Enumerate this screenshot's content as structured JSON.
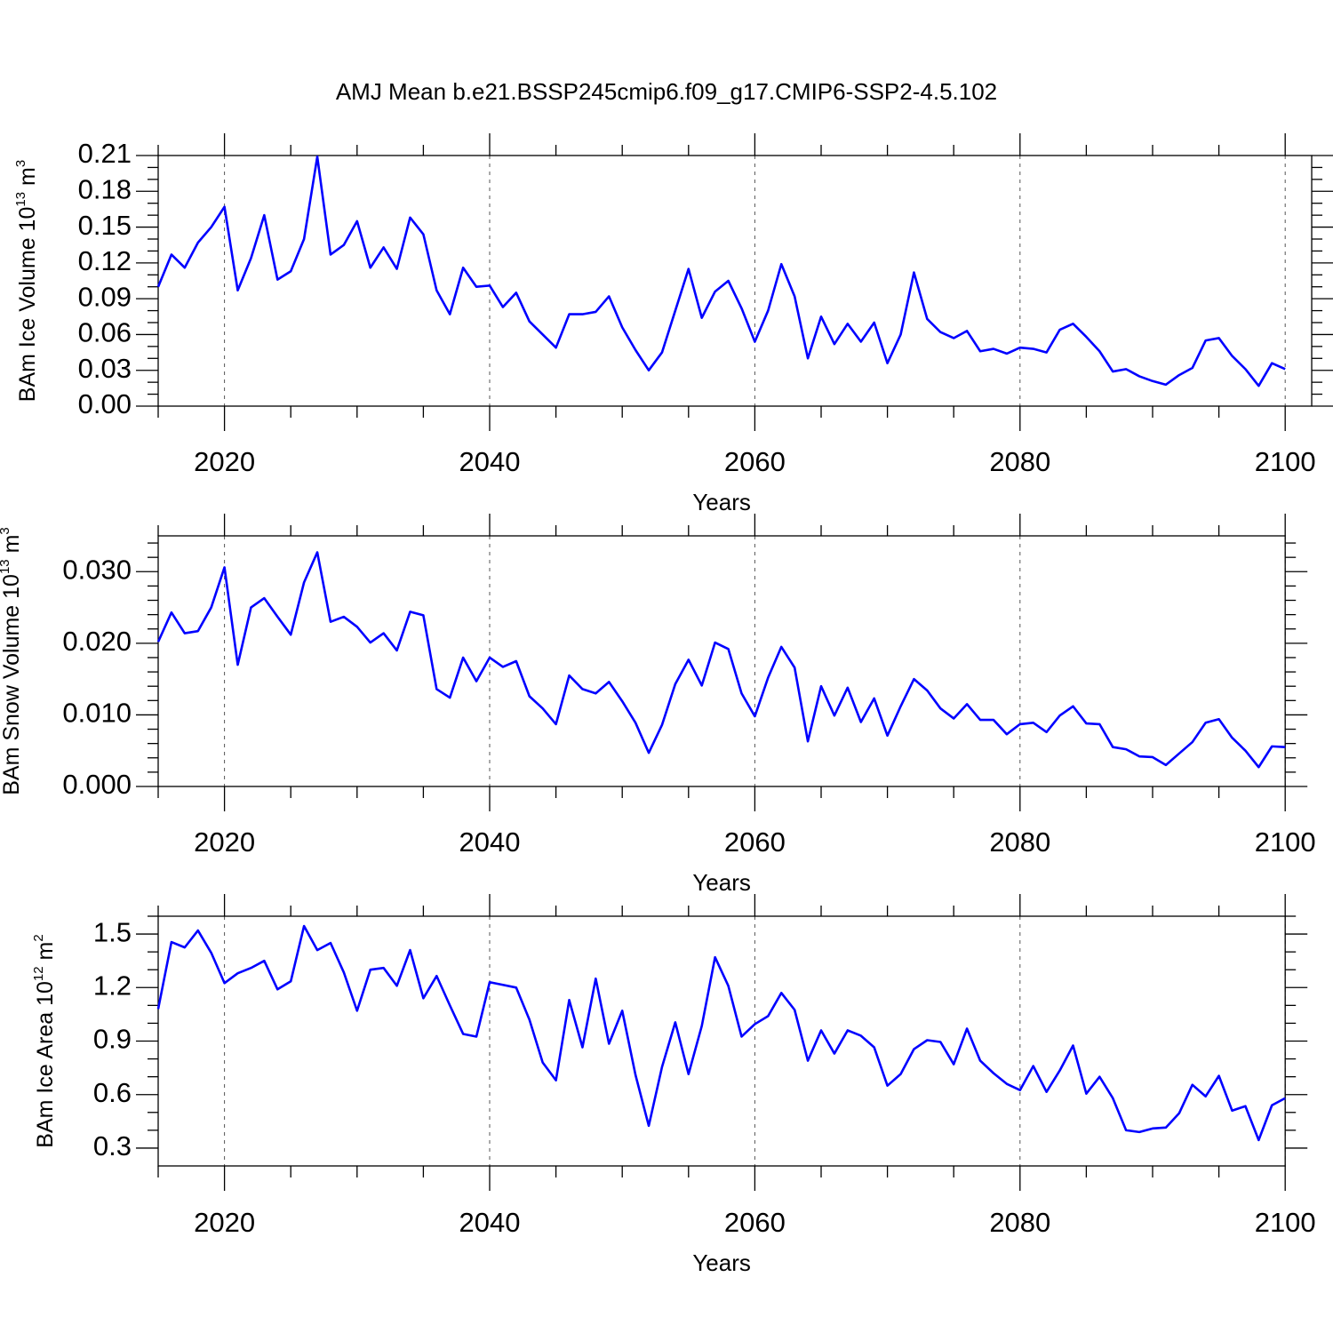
{
  "chart_data": [
    {
      "type": "line",
      "title": "AMJ Mean b.e21.BSSP245cmip6.f09_g17.CMIP6-SSP2-4.5.102",
      "ylabel": {
        "text": "BAm Ice Volume 10",
        "exp": "13",
        "unit": " m",
        "unit_exp": "3"
      },
      "xlabel": "Years",
      "color": "#0000ff",
      "grid": true,
      "xlim": [
        2015,
        2102
      ],
      "xticks": [
        2020,
        2040,
        2060,
        2080,
        2100
      ],
      "xminorticks": [
        2015,
        2025,
        2030,
        2035,
        2045,
        2050,
        2055,
        2065,
        2070,
        2075,
        2085,
        2090,
        2095
      ],
      "ylim": [
        0,
        0.21
      ],
      "yticks": [
        {
          "value": 0,
          "label": "0.00"
        },
        0.03,
        0.06,
        0.09,
        0.12,
        0.15,
        0.18,
        0.21
      ],
      "yminorticks": [
        0.01,
        0.02,
        0.04,
        0.05,
        0.07,
        0.08,
        0.1,
        0.11,
        0.13,
        0.14,
        0.16,
        0.17,
        0.19,
        0.2
      ],
      "x": [
        2015,
        2016,
        2017,
        2018,
        2019,
        2020,
        2021,
        2022,
        2023,
        2024,
        2025,
        2026,
        2027,
        2028,
        2029,
        2030,
        2031,
        2032,
        2033,
        2034,
        2035,
        2036,
        2037,
        2038,
        2039,
        2040,
        2041,
        2042,
        2043,
        2044,
        2045,
        2046,
        2047,
        2048,
        2049,
        2050,
        2051,
        2052,
        2053,
        2054,
        2055,
        2056,
        2057,
        2058,
        2059,
        2060,
        2061,
        2062,
        2063,
        2064,
        2065,
        2066,
        2067,
        2068,
        2069,
        2070,
        2071,
        2072,
        2073,
        2074,
        2075,
        2076,
        2077,
        2078,
        2079,
        2080,
        2081,
        2082,
        2083,
        2084,
        2085,
        2086,
        2087,
        2088,
        2089,
        2090,
        2091,
        2092,
        2093,
        2094,
        2095,
        2096,
        2097,
        2098,
        2099,
        2100
      ],
      "values": [
        0.1,
        0.127,
        0.116,
        0.137,
        0.15,
        0.167,
        0.097,
        0.124,
        0.16,
        0.106,
        0.113,
        0.14,
        0.209,
        0.127,
        0.135,
        0.155,
        0.116,
        0.133,
        0.115,
        0.158,
        0.144,
        0.097,
        0.077,
        0.116,
        0.1,
        0.101,
        0.083,
        0.095,
        0.071,
        0.06,
        0.049,
        0.077,
        0.077,
        0.079,
        0.092,
        0.066,
        0.047,
        0.03,
        0.045,
        0.08,
        0.115,
        0.074,
        0.096,
        0.105,
        0.082,
        0.054,
        0.08,
        0.119,
        0.092,
        0.04,
        0.075,
        0.052,
        0.069,
        0.054,
        0.07,
        0.036,
        0.06,
        0.112,
        0.073,
        0.062,
        0.057,
        0.063,
        0.046,
        0.048,
        0.044,
        0.049,
        0.048,
        0.045,
        0.064,
        0.069,
        0.058,
        0.046,
        0.029,
        0.031,
        0.025,
        0.021,
        0.018,
        0.026,
        0.032,
        0.055,
        0.057,
        0.042,
        0.031,
        0.017,
        0.036,
        0.031
      ]
    },
    {
      "type": "line",
      "ylabel": {
        "text": "BAm Snow Volume 10",
        "exp": "13",
        "unit": " m",
        "unit_exp": "3"
      },
      "xlabel": "Years",
      "color": "#0000ff",
      "grid": true,
      "xlim": [
        2015,
        2100
      ],
      "xticks": [
        2020,
        2040,
        2060,
        2080,
        2100
      ],
      "xminorticks": [
        2015,
        2025,
        2030,
        2035,
        2045,
        2050,
        2055,
        2065,
        2070,
        2075,
        2085,
        2090,
        2095
      ],
      "ylim": [
        0,
        0.035
      ],
      "yticks": [
        {
          "value": 0,
          "label": "0.000"
        },
        {
          "value": 0.01,
          "label": "0.010"
        },
        {
          "value": 0.02,
          "label": "0.020"
        },
        {
          "value": 0.03,
          "label": "0.030"
        }
      ],
      "yminorticks": [
        0.002,
        0.004,
        0.006,
        0.008,
        0.012,
        0.014,
        0.016,
        0.018,
        0.022,
        0.024,
        0.026,
        0.028,
        0.032,
        0.034
      ],
      "x": [
        2015,
        2016,
        2017,
        2018,
        2019,
        2020,
        2021,
        2022,
        2023,
        2024,
        2025,
        2026,
        2027,
        2028,
        2029,
        2030,
        2031,
        2032,
        2033,
        2034,
        2035,
        2036,
        2037,
        2038,
        2039,
        2040,
        2041,
        2042,
        2043,
        2044,
        2045,
        2046,
        2047,
        2048,
        2049,
        2050,
        2051,
        2052,
        2053,
        2054,
        2055,
        2056,
        2057,
        2058,
        2059,
        2060,
        2061,
        2062,
        2063,
        2064,
        2065,
        2066,
        2067,
        2068,
        2069,
        2070,
        2071,
        2072,
        2073,
        2074,
        2075,
        2076,
        2077,
        2078,
        2079,
        2080,
        2081,
        2082,
        2083,
        2084,
        2085,
        2086,
        2087,
        2088,
        2089,
        2090,
        2091,
        2092,
        2093,
        2094,
        2095,
        2096,
        2097,
        2098,
        2099,
        2100
      ],
      "values": [
        0.0202,
        0.0243,
        0.0214,
        0.0217,
        0.025,
        0.0306,
        0.017,
        0.025,
        0.0263,
        0.0237,
        0.0212,
        0.0285,
        0.0327,
        0.023,
        0.0237,
        0.0223,
        0.0201,
        0.0214,
        0.019,
        0.0244,
        0.0239,
        0.0136,
        0.0124,
        0.018,
        0.0147,
        0.018,
        0.0167,
        0.0175,
        0.0126,
        0.0109,
        0.0087,
        0.0155,
        0.0136,
        0.013,
        0.0146,
        0.0119,
        0.0089,
        0.0047,
        0.0086,
        0.0143,
        0.0177,
        0.0141,
        0.0201,
        0.0192,
        0.013,
        0.0098,
        0.0152,
        0.0195,
        0.0166,
        0.0063,
        0.014,
        0.0099,
        0.0138,
        0.009,
        0.0123,
        0.0071,
        0.0112,
        0.015,
        0.0134,
        0.0109,
        0.0095,
        0.0115,
        0.0093,
        0.0093,
        0.0073,
        0.0087,
        0.0089,
        0.0076,
        0.0099,
        0.0112,
        0.0088,
        0.0087,
        0.0055,
        0.0052,
        0.0042,
        0.0041,
        0.003,
        0.0046,
        0.0062,
        0.0089,
        0.0094,
        0.0068,
        0.005,
        0.0027,
        0.0056,
        0.0055
      ]
    },
    {
      "type": "line",
      "ylabel": {
        "text": "BAm Ice Area 10",
        "exp": "12",
        "unit": " m",
        "unit_exp": "2"
      },
      "xlabel": "Years",
      "color": "#0000ff",
      "grid": true,
      "xlim": [
        2015,
        2100
      ],
      "xticks": [
        2020,
        2040,
        2060,
        2080,
        2100
      ],
      "xminorticks": [
        2015,
        2025,
        2030,
        2035,
        2045,
        2050,
        2055,
        2065,
        2070,
        2075,
        2085,
        2090,
        2095
      ],
      "ylim": [
        0.2,
        1.6
      ],
      "yticks": [
        0.3,
        0.6,
        0.9,
        1.2,
        1.5
      ],
      "yminorticks": [
        0.4,
        0.5,
        0.7,
        0.8,
        1.0,
        1.1,
        1.3,
        1.4,
        1.6
      ],
      "x": [
        2015,
        2016,
        2017,
        2018,
        2019,
        2020,
        2021,
        2022,
        2023,
        2024,
        2025,
        2026,
        2027,
        2028,
        2029,
        2030,
        2031,
        2032,
        2033,
        2034,
        2035,
        2036,
        2037,
        2038,
        2039,
        2040,
        2041,
        2042,
        2043,
        2044,
        2045,
        2046,
        2047,
        2048,
        2049,
        2050,
        2051,
        2052,
        2053,
        2054,
        2055,
        2056,
        2057,
        2058,
        2059,
        2060,
        2061,
        2062,
        2063,
        2064,
        2065,
        2066,
        2067,
        2068,
        2069,
        2070,
        2071,
        2072,
        2073,
        2074,
        2075,
        2076,
        2077,
        2078,
        2079,
        2080,
        2081,
        2082,
        2083,
        2084,
        2085,
        2086,
        2087,
        2088,
        2089,
        2090,
        2091,
        2092,
        2093,
        2094,
        2095,
        2096,
        2097,
        2098,
        2099,
        2100
      ],
      "values": [
        1.08,
        1.455,
        1.425,
        1.52,
        1.395,
        1.225,
        1.28,
        1.31,
        1.35,
        1.19,
        1.235,
        1.545,
        1.41,
        1.45,
        1.285,
        1.07,
        1.3,
        1.31,
        1.21,
        1.41,
        1.14,
        1.265,
        1.1,
        0.94,
        0.925,
        1.23,
        1.215,
        1.2,
        1.02,
        0.78,
        0.68,
        1.13,
        0.865,
        1.25,
        0.885,
        1.07,
        0.71,
        0.425,
        0.755,
        1.005,
        0.715,
        0.985,
        1.37,
        1.21,
        0.925,
        0.995,
        1.04,
        1.17,
        1.075,
        0.79,
        0.96,
        0.83,
        0.96,
        0.93,
        0.865,
        0.65,
        0.715,
        0.855,
        0.905,
        0.895,
        0.77,
        0.97,
        0.79,
        0.72,
        0.66,
        0.625,
        0.76,
        0.615,
        0.735,
        0.875,
        0.605,
        0.7,
        0.58,
        0.4,
        0.39,
        0.41,
        0.415,
        0.495,
        0.655,
        0.59,
        0.705,
        0.51,
        0.535,
        0.345,
        0.54,
        0.58
      ]
    }
  ]
}
